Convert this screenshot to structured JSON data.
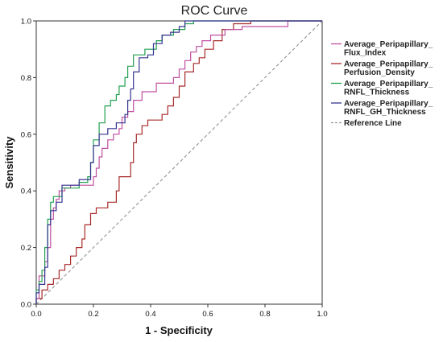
{
  "chart_data": {
    "type": "line",
    "title": "ROC Curve",
    "xlabel": "1 - Specificity",
    "ylabel": "Sensitivity",
    "xlim": [
      0,
      1
    ],
    "ylim": [
      0,
      1
    ],
    "xticks": [
      "0.0",
      "0.2",
      "0.4",
      "0.6",
      "0.8",
      "1.0"
    ],
    "yticks": [
      "0.0",
      "0.2",
      "0.4",
      "0.6",
      "0.8",
      "1.0"
    ],
    "grid": false,
    "legend_position": "right",
    "series": [
      {
        "name": "Average_Peripapillary_Flux_Index",
        "legend_lines": [
          "Average_Peripapillary_",
          "Flux_Index"
        ],
        "color": "#c04fa0",
        "dash": "",
        "points": [
          [
            0,
            0
          ],
          [
            0,
            0.02
          ],
          [
            0.01,
            0.02
          ],
          [
            0.01,
            0.1
          ],
          [
            0.03,
            0.1
          ],
          [
            0.03,
            0.15
          ],
          [
            0.04,
            0.15
          ],
          [
            0.04,
            0.2
          ],
          [
            0.05,
            0.2
          ],
          [
            0.05,
            0.3
          ],
          [
            0.06,
            0.3
          ],
          [
            0.06,
            0.34
          ],
          [
            0.07,
            0.34
          ],
          [
            0.07,
            0.37
          ],
          [
            0.08,
            0.37
          ],
          [
            0.08,
            0.4
          ],
          [
            0.1,
            0.4
          ],
          [
            0.1,
            0.41
          ],
          [
            0.12,
            0.41
          ],
          [
            0.12,
            0.42
          ],
          [
            0.2,
            0.42
          ],
          [
            0.2,
            0.45
          ],
          [
            0.21,
            0.45
          ],
          [
            0.21,
            0.48
          ],
          [
            0.22,
            0.48
          ],
          [
            0.22,
            0.52
          ],
          [
            0.23,
            0.52
          ],
          [
            0.23,
            0.55
          ],
          [
            0.25,
            0.55
          ],
          [
            0.25,
            0.58
          ],
          [
            0.27,
            0.58
          ],
          [
            0.27,
            0.6
          ],
          [
            0.29,
            0.6
          ],
          [
            0.29,
            0.62
          ],
          [
            0.3,
            0.62
          ],
          [
            0.3,
            0.66
          ],
          [
            0.32,
            0.66
          ],
          [
            0.32,
            0.68
          ],
          [
            0.34,
            0.68
          ],
          [
            0.34,
            0.72
          ],
          [
            0.37,
            0.72
          ],
          [
            0.37,
            0.75
          ],
          [
            0.42,
            0.75
          ],
          [
            0.42,
            0.78
          ],
          [
            0.48,
            0.78
          ],
          [
            0.48,
            0.8
          ],
          [
            0.5,
            0.8
          ],
          [
            0.5,
            0.83
          ],
          [
            0.52,
            0.83
          ],
          [
            0.52,
            0.86
          ],
          [
            0.54,
            0.86
          ],
          [
            0.54,
            0.89
          ],
          [
            0.56,
            0.89
          ],
          [
            0.56,
            0.91
          ],
          [
            0.58,
            0.91
          ],
          [
            0.58,
            0.93
          ],
          [
            0.61,
            0.93
          ],
          [
            0.61,
            0.95
          ],
          [
            0.66,
            0.95
          ],
          [
            0.66,
            0.97
          ],
          [
            0.72,
            0.97
          ],
          [
            0.72,
            0.98
          ],
          [
            0.88,
            0.98
          ],
          [
            0.88,
            1.0
          ],
          [
            1.0,
            1.0
          ]
        ]
      },
      {
        "name": "Average_Peripapillary_Perfusion_Density",
        "legend_lines": [
          "Average_Peripapillary_",
          "Perfusion_Density"
        ],
        "color": "#a82a2a",
        "dash": "",
        "points": [
          [
            0,
            0
          ],
          [
            0,
            0.02
          ],
          [
            0.02,
            0.02
          ],
          [
            0.02,
            0.05
          ],
          [
            0.04,
            0.05
          ],
          [
            0.04,
            0.07
          ],
          [
            0.06,
            0.07
          ],
          [
            0.06,
            0.09
          ],
          [
            0.08,
            0.09
          ],
          [
            0.08,
            0.12
          ],
          [
            0.1,
            0.12
          ],
          [
            0.1,
            0.14
          ],
          [
            0.12,
            0.14
          ],
          [
            0.12,
            0.17
          ],
          [
            0.14,
            0.17
          ],
          [
            0.14,
            0.2
          ],
          [
            0.16,
            0.2
          ],
          [
            0.16,
            0.23
          ],
          [
            0.17,
            0.23
          ],
          [
            0.17,
            0.28
          ],
          [
            0.19,
            0.28
          ],
          [
            0.19,
            0.32
          ],
          [
            0.21,
            0.32
          ],
          [
            0.21,
            0.34
          ],
          [
            0.25,
            0.34
          ],
          [
            0.25,
            0.36
          ],
          [
            0.28,
            0.36
          ],
          [
            0.28,
            0.4
          ],
          [
            0.29,
            0.4
          ],
          [
            0.29,
            0.45
          ],
          [
            0.33,
            0.45
          ],
          [
            0.33,
            0.5
          ],
          [
            0.34,
            0.5
          ],
          [
            0.34,
            0.57
          ],
          [
            0.35,
            0.57
          ],
          [
            0.35,
            0.6
          ],
          [
            0.37,
            0.6
          ],
          [
            0.37,
            0.63
          ],
          [
            0.39,
            0.63
          ],
          [
            0.39,
            0.65
          ],
          [
            0.44,
            0.65
          ],
          [
            0.44,
            0.67
          ],
          [
            0.46,
            0.67
          ],
          [
            0.46,
            0.7
          ],
          [
            0.48,
            0.7
          ],
          [
            0.48,
            0.73
          ],
          [
            0.5,
            0.73
          ],
          [
            0.5,
            0.77
          ],
          [
            0.52,
            0.77
          ],
          [
            0.52,
            0.82
          ],
          [
            0.55,
            0.82
          ],
          [
            0.55,
            0.85
          ],
          [
            0.57,
            0.85
          ],
          [
            0.57,
            0.87
          ],
          [
            0.59,
            0.87
          ],
          [
            0.59,
            0.9
          ],
          [
            0.62,
            0.9
          ],
          [
            0.62,
            0.93
          ],
          [
            0.65,
            0.93
          ],
          [
            0.65,
            0.97
          ],
          [
            0.69,
            0.97
          ],
          [
            0.69,
            0.99
          ],
          [
            0.75,
            0.99
          ],
          [
            0.75,
            1.0
          ],
          [
            1.0,
            1.0
          ]
        ]
      },
      {
        "name": "Average_Peripapillary_RNFL_Thickness",
        "legend_lines": [
          "Average_Peripapillary_",
          "RNFL_Thickness"
        ],
        "color": "#22a050",
        "dash": "",
        "points": [
          [
            0,
            0
          ],
          [
            0,
            0.05
          ],
          [
            0.01,
            0.05
          ],
          [
            0.01,
            0.08
          ],
          [
            0.02,
            0.08
          ],
          [
            0.02,
            0.12
          ],
          [
            0.03,
            0.12
          ],
          [
            0.03,
            0.2
          ],
          [
            0.04,
            0.2
          ],
          [
            0.04,
            0.3
          ],
          [
            0.05,
            0.3
          ],
          [
            0.05,
            0.36
          ],
          [
            0.06,
            0.36
          ],
          [
            0.06,
            0.38
          ],
          [
            0.09,
            0.38
          ],
          [
            0.09,
            0.41
          ],
          [
            0.15,
            0.41
          ],
          [
            0.15,
            0.43
          ],
          [
            0.18,
            0.43
          ],
          [
            0.18,
            0.45
          ],
          [
            0.19,
            0.45
          ],
          [
            0.19,
            0.5
          ],
          [
            0.2,
            0.5
          ],
          [
            0.2,
            0.58
          ],
          [
            0.22,
            0.58
          ],
          [
            0.22,
            0.64
          ],
          [
            0.24,
            0.64
          ],
          [
            0.24,
            0.7
          ],
          [
            0.26,
            0.7
          ],
          [
            0.26,
            0.72
          ],
          [
            0.28,
            0.72
          ],
          [
            0.28,
            0.74
          ],
          [
            0.29,
            0.74
          ],
          [
            0.29,
            0.77
          ],
          [
            0.31,
            0.77
          ],
          [
            0.31,
            0.8
          ],
          [
            0.32,
            0.8
          ],
          [
            0.32,
            0.84
          ],
          [
            0.34,
            0.84
          ],
          [
            0.34,
            0.88
          ],
          [
            0.38,
            0.88
          ],
          [
            0.38,
            0.9
          ],
          [
            0.42,
            0.9
          ],
          [
            0.42,
            0.93
          ],
          [
            0.44,
            0.93
          ],
          [
            0.44,
            0.95
          ],
          [
            0.48,
            0.95
          ],
          [
            0.48,
            0.97
          ],
          [
            0.52,
            0.97
          ],
          [
            0.52,
            0.99
          ],
          [
            0.55,
            0.99
          ],
          [
            0.55,
            1.0
          ],
          [
            1.0,
            1.0
          ]
        ]
      },
      {
        "name": "Average_Peripapillary_RNFL_GH_Thickness",
        "legend_lines": [
          "Average_Peripapillary_",
          "RNFL_GH_Thickness"
        ],
        "color": "#353590",
        "dash": "",
        "points": [
          [
            0,
            0
          ],
          [
            0,
            0.04
          ],
          [
            0.01,
            0.04
          ],
          [
            0.01,
            0.07
          ],
          [
            0.03,
            0.07
          ],
          [
            0.03,
            0.13
          ],
          [
            0.04,
            0.13
          ],
          [
            0.04,
            0.28
          ],
          [
            0.05,
            0.28
          ],
          [
            0.05,
            0.33
          ],
          [
            0.07,
            0.33
          ],
          [
            0.07,
            0.36
          ],
          [
            0.09,
            0.36
          ],
          [
            0.09,
            0.42
          ],
          [
            0.15,
            0.42
          ],
          [
            0.15,
            0.44
          ],
          [
            0.19,
            0.44
          ],
          [
            0.19,
            0.5
          ],
          [
            0.2,
            0.5
          ],
          [
            0.2,
            0.56
          ],
          [
            0.22,
            0.56
          ],
          [
            0.22,
            0.6
          ],
          [
            0.25,
            0.6
          ],
          [
            0.25,
            0.62
          ],
          [
            0.28,
            0.62
          ],
          [
            0.28,
            0.64
          ],
          [
            0.31,
            0.64
          ],
          [
            0.31,
            0.67
          ],
          [
            0.32,
            0.67
          ],
          [
            0.32,
            0.72
          ],
          [
            0.33,
            0.72
          ],
          [
            0.33,
            0.76
          ],
          [
            0.34,
            0.76
          ],
          [
            0.34,
            0.82
          ],
          [
            0.36,
            0.82
          ],
          [
            0.36,
            0.87
          ],
          [
            0.39,
            0.87
          ],
          [
            0.39,
            0.88
          ],
          [
            0.41,
            0.88
          ],
          [
            0.41,
            0.92
          ],
          [
            0.44,
            0.92
          ],
          [
            0.44,
            0.95
          ],
          [
            0.47,
            0.95
          ],
          [
            0.47,
            0.96
          ],
          [
            0.5,
            0.96
          ],
          [
            0.5,
            0.98
          ],
          [
            0.52,
            0.98
          ],
          [
            0.52,
            1.0
          ],
          [
            1.0,
            1.0
          ]
        ]
      },
      {
        "name": "Reference Line",
        "legend_lines": [
          "Reference Line"
        ],
        "color": "#9a9a9a",
        "dash": "4,3",
        "points": [
          [
            0,
            0
          ],
          [
            1,
            1
          ]
        ]
      }
    ]
  }
}
